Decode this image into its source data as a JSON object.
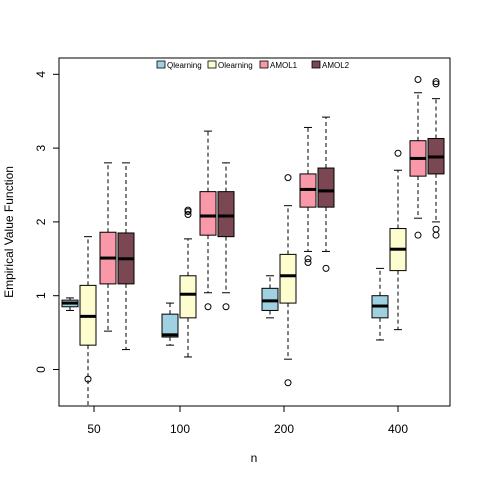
{
  "chart_data": {
    "type": "box",
    "title": "",
    "xlabel": "n",
    "ylabel": "Empirical Value Function",
    "categories": [
      "50",
      "100",
      "200",
      "400"
    ],
    "ylim": [
      -0.5,
      4.2
    ],
    "yticks": [
      0,
      1,
      2,
      3,
      4
    ],
    "grid": false,
    "legend_position": "top",
    "series": [
      {
        "name": "Qlearning",
        "color": "#9fd1e1",
        "boxes": [
          {
            "min": 0.8,
            "q1": 0.85,
            "median": 0.9,
            "q3": 0.94,
            "max": 0.97,
            "outliers": []
          },
          {
            "min": 0.33,
            "q1": 0.44,
            "median": 0.47,
            "q3": 0.75,
            "max": 0.9,
            "outliers": []
          },
          {
            "min": 0.7,
            "q1": 0.8,
            "median": 0.93,
            "q3": 1.1,
            "max": 1.27,
            "outliers": []
          },
          {
            "min": 0.4,
            "q1": 0.7,
            "median": 0.86,
            "q3": 1.0,
            "max": 1.37,
            "outliers": []
          }
        ]
      },
      {
        "name": "Olearning",
        "color": "#fdfdd0",
        "boxes": [
          {
            "min": -0.52,
            "q1": 0.33,
            "median": 0.72,
            "q3": 1.14,
            "max": 1.8,
            "outliers": [
              -0.13
            ]
          },
          {
            "min": 0.17,
            "q1": 0.7,
            "median": 1.02,
            "q3": 1.27,
            "max": 1.77,
            "outliers": [
              2.1,
              2.14,
              2.16
            ]
          },
          {
            "min": 0.14,
            "q1": 0.9,
            "median": 1.27,
            "q3": 1.56,
            "max": 2.22,
            "outliers": [
              2.6,
              -0.18
            ]
          },
          {
            "min": 0.54,
            "q1": 1.34,
            "median": 1.63,
            "q3": 1.91,
            "max": 2.7,
            "outliers": [
              2.93
            ]
          }
        ]
      },
      {
        "name": "AMOL1",
        "color": "#f898a8",
        "boxes": [
          {
            "min": 0.52,
            "q1": 1.16,
            "median": 1.51,
            "q3": 1.86,
            "max": 2.8,
            "outliers": []
          },
          {
            "min": 1.04,
            "q1": 1.82,
            "median": 2.08,
            "q3": 2.41,
            "max": 3.23,
            "outliers": [
              0.85
            ]
          },
          {
            "min": 1.6,
            "q1": 2.2,
            "median": 2.44,
            "q3": 2.65,
            "max": 3.28,
            "outliers": [
              1.45,
              1.5
            ]
          },
          {
            "min": 2.05,
            "q1": 2.62,
            "median": 2.86,
            "q3": 3.1,
            "max": 3.75,
            "outliers": [
              1.82,
              3.93
            ]
          }
        ]
      },
      {
        "name": "AMOL2",
        "color": "#7b4752",
        "boxes": [
          {
            "min": 0.27,
            "q1": 1.16,
            "median": 1.5,
            "q3": 1.85,
            "max": 2.8,
            "outliers": []
          },
          {
            "min": 1.04,
            "q1": 1.8,
            "median": 2.08,
            "q3": 2.41,
            "max": 2.8,
            "outliers": [
              0.85
            ]
          },
          {
            "min": 1.6,
            "q1": 2.2,
            "median": 2.42,
            "q3": 2.73,
            "max": 3.42,
            "outliers": [
              1.37
            ]
          },
          {
            "min": 2.0,
            "q1": 2.65,
            "median": 2.88,
            "q3": 3.13,
            "max": 3.67,
            "outliers": [
              1.82,
              1.9,
              3.87,
              3.9
            ]
          }
        ]
      }
    ]
  }
}
